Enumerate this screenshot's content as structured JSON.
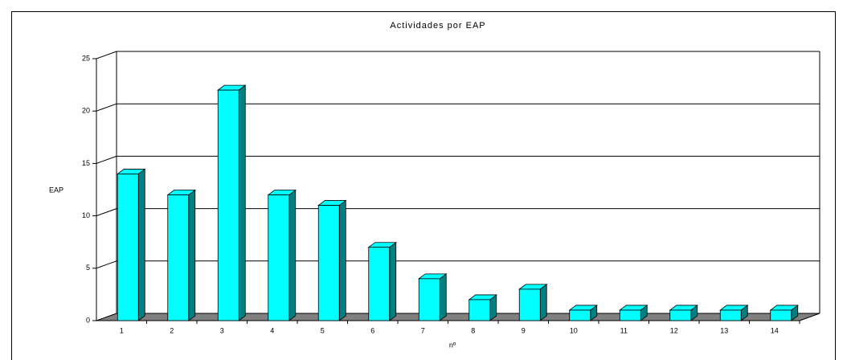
{
  "chart_data": {
    "type": "bar",
    "title": "Actividades por EAP",
    "x_label": "nº",
    "y_label": "EAP",
    "categories": [
      "1",
      "2",
      "3",
      "4",
      "5",
      "6",
      "7",
      "8",
      "9",
      "10",
      "11",
      "12",
      "13",
      "14"
    ],
    "values": [
      14,
      12,
      22,
      12,
      11,
      7,
      4,
      2,
      3,
      1,
      1,
      1,
      1,
      1
    ],
    "color": "#00ffff",
    "ylim": [
      0,
      25
    ],
    "yticks": [
      0,
      5,
      10,
      15,
      20,
      25
    ],
    "grid": true
  }
}
